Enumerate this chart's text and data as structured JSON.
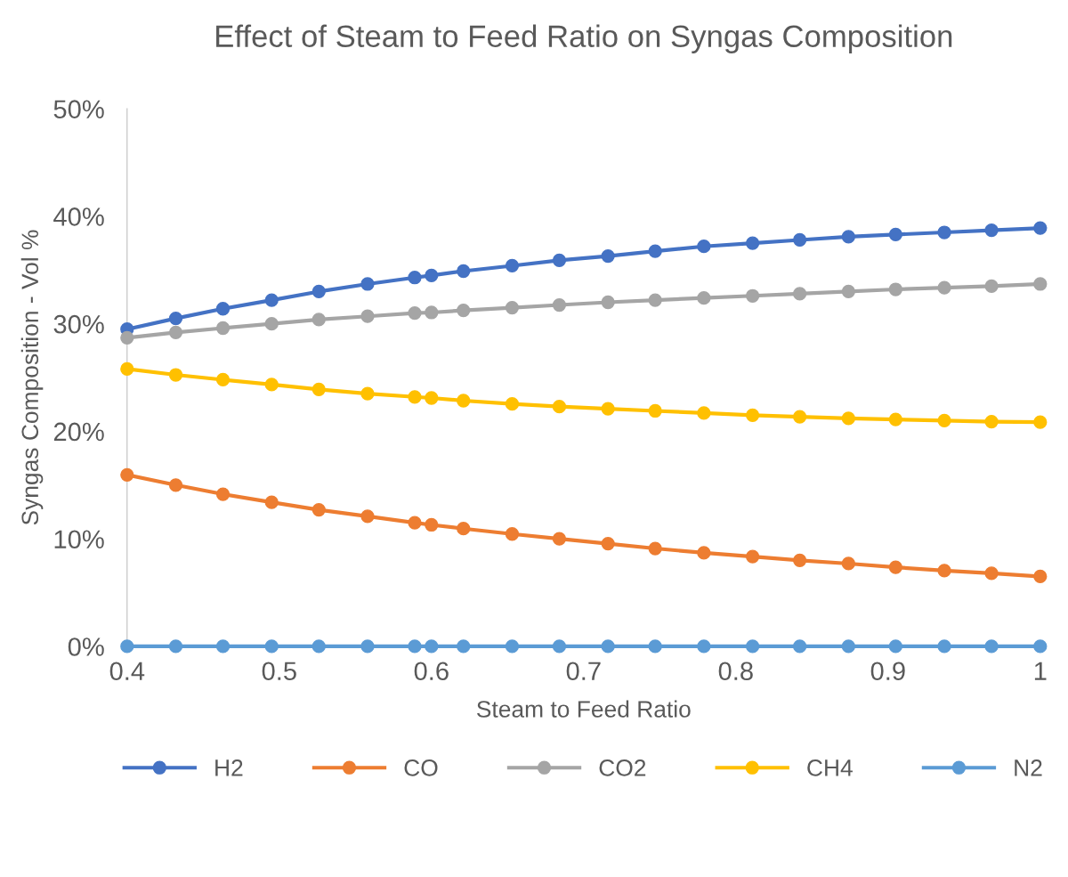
{
  "chart_data": {
    "type": "line",
    "title": "Effect of Steam to Feed Ratio on Syngas Composition",
    "xlabel": "Steam to Feed Ratio",
    "ylabel": "Syngas Composition - Vol %",
    "x": [
      0.4,
      0.432,
      0.463,
      0.495,
      0.526,
      0.558,
      0.589,
      0.6,
      0.621,
      0.653,
      0.684,
      0.716,
      0.747,
      0.779,
      0.811,
      0.842,
      0.874,
      0.905,
      0.937,
      0.968,
      1.0
    ],
    "series": [
      {
        "name": "H2",
        "color": "#4472c4",
        "values": [
          29.5,
          30.5,
          31.4,
          32.2,
          33.0,
          33.7,
          34.3,
          34.5,
          34.9,
          35.4,
          35.9,
          36.3,
          36.75,
          37.2,
          37.5,
          37.8,
          38.1,
          38.3,
          38.5,
          38.7,
          38.9
        ]
      },
      {
        "name": "CO",
        "color": "#ed7d31",
        "values": [
          15.95,
          15.0,
          14.15,
          13.4,
          12.7,
          12.1,
          11.5,
          11.3,
          10.95,
          10.45,
          10.0,
          9.55,
          9.1,
          8.7,
          8.35,
          8.0,
          7.7,
          7.35,
          7.05,
          6.8,
          6.5
        ]
      },
      {
        "name": "CO2",
        "color": "#a5a5a5",
        "values": [
          28.7,
          29.2,
          29.6,
          30.0,
          30.4,
          30.7,
          31.0,
          31.05,
          31.25,
          31.5,
          31.75,
          32.0,
          32.2,
          32.4,
          32.6,
          32.8,
          33.0,
          33.2,
          33.35,
          33.5,
          33.7
        ]
      },
      {
        "name": "CH4",
        "color": "#ffc000",
        "values": [
          25.8,
          25.25,
          24.8,
          24.35,
          23.9,
          23.5,
          23.2,
          23.1,
          22.85,
          22.55,
          22.3,
          22.1,
          21.9,
          21.7,
          21.5,
          21.35,
          21.2,
          21.1,
          21.0,
          20.9,
          20.85
        ]
      },
      {
        "name": "N2",
        "color": "#5b9bd5",
        "values": [
          0,
          0,
          0,
          0,
          0,
          0,
          0,
          0,
          0,
          0,
          0,
          0,
          0,
          0,
          0,
          0,
          0,
          0,
          0,
          0,
          0
        ]
      }
    ],
    "xlim": [
      0.4,
      1
    ],
    "xticks": [
      0.4,
      0.5,
      0.6,
      0.7,
      0.8,
      0.9,
      1
    ],
    "ylim": [
      0,
      50
    ],
    "yticks": [
      {
        "value": 0,
        "label": "0%"
      },
      {
        "value": 10,
        "label": "10%"
      },
      {
        "value": 20,
        "label": "20%"
      },
      {
        "value": 30,
        "label": "30%"
      },
      {
        "value": 40,
        "label": "40%"
      },
      {
        "value": 50,
        "label": "50%"
      }
    ],
    "grid": false,
    "legend": "bottom",
    "marker": "circle",
    "line_style": "solid"
  }
}
